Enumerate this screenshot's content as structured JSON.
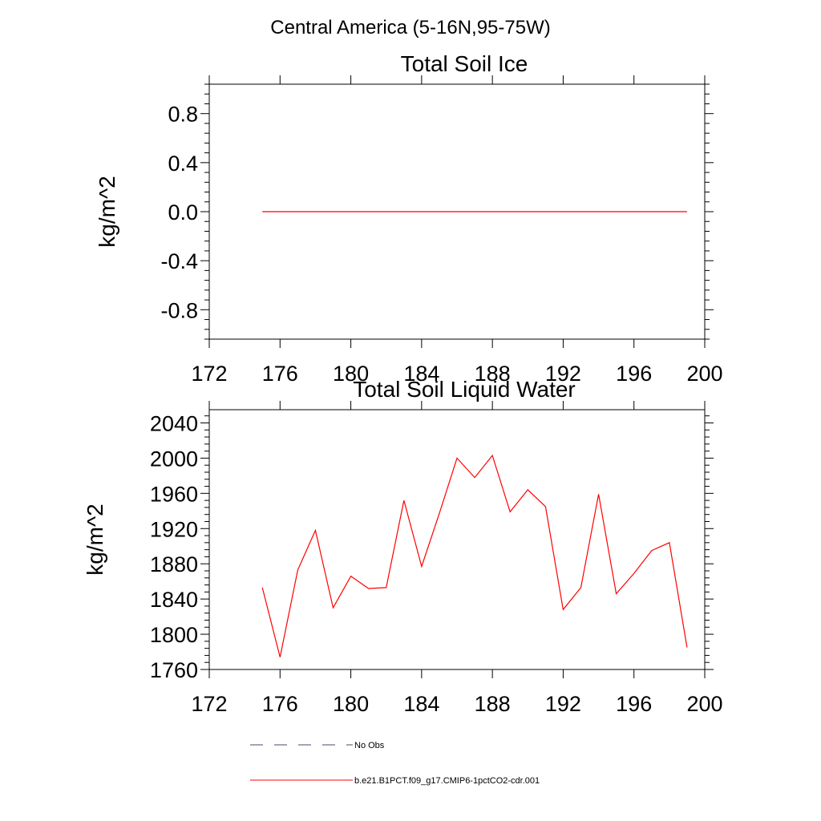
{
  "figure_title": "Central America (5-16N,95-75W)",
  "chart_data": [
    {
      "type": "line",
      "title": "Total Soil Ice",
      "ylabel": "kg/m^2",
      "xlim": [
        172,
        200
      ],
      "ylim": [
        -1.04,
        1.04
      ],
      "xticks": [
        172,
        176,
        180,
        184,
        188,
        192,
        196,
        200
      ],
      "yticks": [
        -0.8,
        -0.4,
        0.0,
        0.4,
        0.8
      ],
      "ytick_labels": [
        "-0.8",
        "-0.4",
        "0.0",
        "0.4",
        "0.8"
      ],
      "series": [
        {
          "color": "#ff0000",
          "x": [
            175,
            176,
            177,
            178,
            179,
            180,
            181,
            182,
            183,
            184,
            185,
            186,
            187,
            188,
            189,
            190,
            191,
            192,
            193,
            194,
            195,
            196,
            197,
            198,
            199
          ],
          "y": [
            0,
            0,
            0,
            0,
            0,
            0,
            0,
            0,
            0,
            0,
            0,
            0,
            0,
            0,
            0,
            0,
            0,
            0,
            0,
            0,
            0,
            0,
            0,
            0,
            0
          ]
        }
      ]
    },
    {
      "type": "line",
      "title": "Total Soil Liquid Water",
      "ylabel": "kg/m^2",
      "xlim": [
        172,
        200
      ],
      "ylim": [
        1760,
        2055
      ],
      "xticks": [
        172,
        176,
        180,
        184,
        188,
        192,
        196,
        200
      ],
      "yticks": [
        1760,
        1800,
        1840,
        1880,
        1920,
        1960,
        2000,
        2040
      ],
      "ytick_labels": [
        "1760",
        "1800",
        "1840",
        "1880",
        "1920",
        "1960",
        "2000",
        "2040"
      ],
      "series": [
        {
          "color": "#ff0000",
          "x": [
            175,
            176,
            177,
            178,
            179,
            180,
            181,
            182,
            183,
            184,
            185,
            186,
            187,
            188,
            189,
            190,
            191,
            192,
            193,
            194,
            195,
            196,
            197,
            198,
            199
          ],
          "y": [
            1853,
            1774,
            1873,
            1918,
            1830,
            1866,
            1852,
            1853,
            1952,
            1877,
            1937,
            2000,
            1978,
            2003,
            1939,
            1964,
            1945,
            1828,
            1853,
            1959,
            1846,
            1869,
            1895,
            1904,
            1785
          ]
        }
      ]
    }
  ],
  "legend": [
    {
      "label": "No Obs",
      "style": "dashed",
      "color": "#4a4a6a"
    },
    {
      "label": "b.e21.B1PCT.f09_g17.CMIP6-1pctCO2-cdr.001",
      "style": "solid",
      "color": "#ff0000"
    }
  ]
}
